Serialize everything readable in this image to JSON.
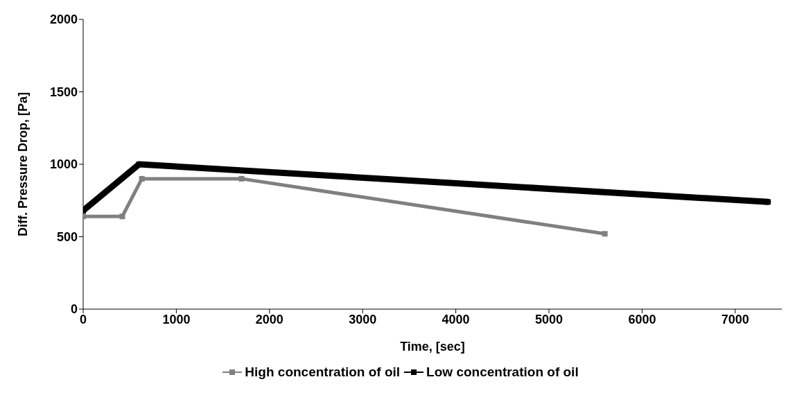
{
  "chart_data": {
    "type": "line",
    "xlabel": "Time, [sec]",
    "ylabel": "Diff. Pressure Drop, [Pa]",
    "xlim": [
      0,
      7500
    ],
    "xticks": [
      0,
      1000,
      2000,
      3000,
      4000,
      5000,
      6000,
      7000
    ],
    "ylim": [
      0,
      2000
    ],
    "yticks": [
      0,
      500,
      1000,
      1500,
      2000
    ],
    "grid": false,
    "legend": "bottom",
    "marker": "square",
    "line_style": "solid",
    "series": [
      {
        "name": "High concentration of oil",
        "color": "#808080",
        "x": [
          0,
          420,
          630,
          1700,
          5600
        ],
        "values": [
          640,
          640,
          900,
          900,
          520
        ]
      },
      {
        "name": "Low concentration of oil",
        "color": "#000000",
        "x": [
          0,
          600,
          7350
        ],
        "values": [
          680,
          1000,
          740
        ]
      }
    ]
  }
}
